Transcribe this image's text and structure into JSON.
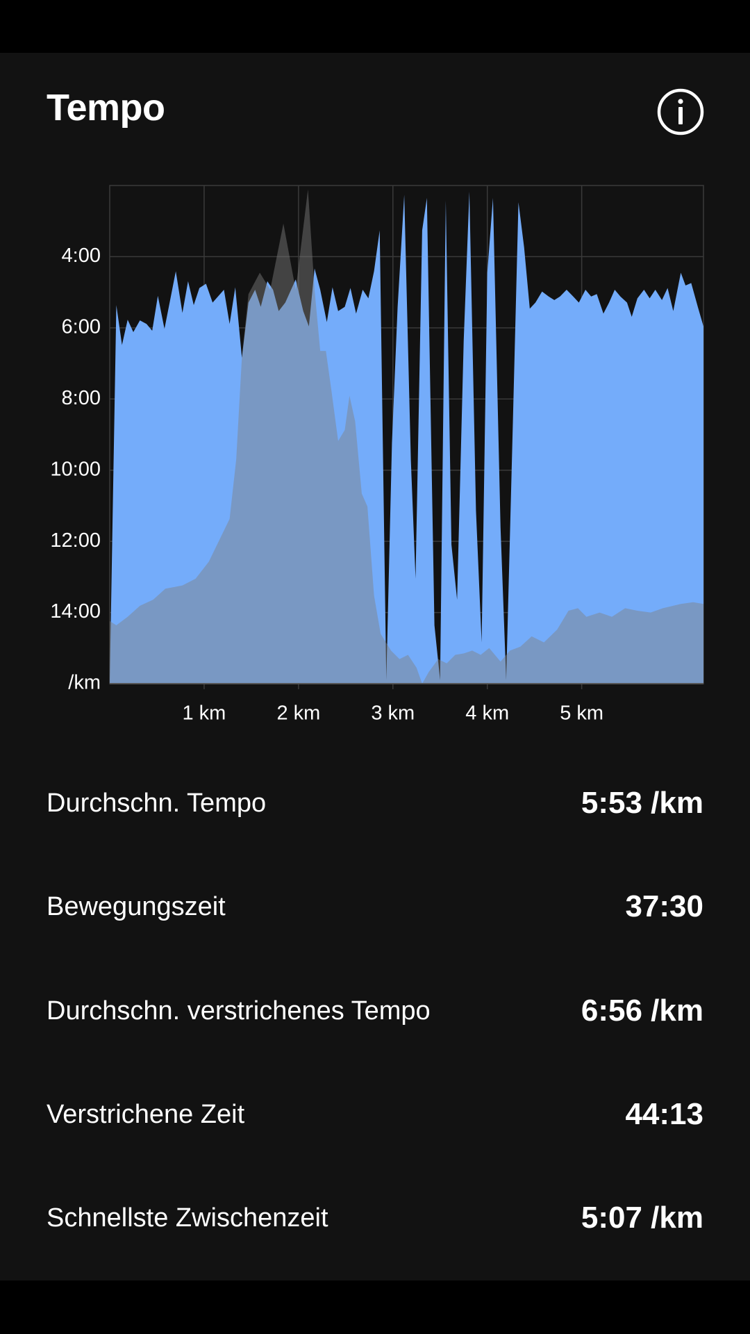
{
  "header": {
    "title": "Tempo"
  },
  "chart_data": {
    "type": "area",
    "ylim": [
      16,
      2
    ],
    "yticks": [
      {
        "value": 4,
        "label": "4:00"
      },
      {
        "value": 6,
        "label": "6:00"
      },
      {
        "value": 8,
        "label": "8:00"
      },
      {
        "value": 10,
        "label": "10:00"
      },
      {
        "value": 12,
        "label": "12:00"
      },
      {
        "value": 14,
        "label": "14:00"
      },
      {
        "value": 16,
        "label": "/km"
      }
    ],
    "xlim": [
      0,
      6.29
    ],
    "xticks": [
      {
        "value": 1,
        "label": "1 km"
      },
      {
        "value": 2,
        "label": "2 km"
      },
      {
        "value": 3,
        "label": "3 km"
      },
      {
        "value": 4,
        "label": "4 km"
      },
      {
        "value": 5,
        "label": "5 km"
      }
    ],
    "grid": true,
    "series": [
      {
        "color": "#74acfa",
        "opacity": 1,
        "x": [
          0,
          0.07,
          0.13,
          0.19,
          0.25,
          0.32,
          0.39,
          0.45,
          0.51,
          0.58,
          0.7,
          0.77,
          0.83,
          0.89,
          0.95,
          1.02,
          1.09,
          1.21,
          1.27,
          1.33,
          1.4,
          1.47,
          1.54,
          1.6,
          1.67,
          1.73,
          1.79,
          1.86,
          1.97,
          2.05,
          2.11,
          2.17,
          2.23,
          2.3,
          2.36,
          2.42,
          2.49,
          2.55,
          2.61,
          2.68,
          2.74,
          2.8,
          2.86,
          2.93,
          2.99,
          3.05,
          3.12,
          3.19,
          3.24,
          3.31,
          3.36,
          3.44,
          3.5,
          3.56,
          3.62,
          3.68,
          3.75,
          3.81,
          3.88,
          3.94,
          4.0,
          4.06,
          4.14,
          4.2,
          4.27,
          4.33,
          4.39,
          4.45,
          4.51,
          4.58,
          4.65,
          4.71,
          4.77,
          4.84,
          4.91,
          4.97,
          5.04,
          5.1,
          5.16,
          5.23,
          5.29,
          5.35,
          5.41,
          5.48,
          5.53,
          5.59,
          5.66,
          5.72,
          5.78,
          5.85,
          5.91,
          5.97,
          6.05,
          6.1,
          6.16,
          6.23,
          6.29
        ],
        "values": [
          16,
          5.36,
          6.48,
          5.77,
          6.12,
          5.79,
          5.89,
          6.08,
          5.1,
          6.03,
          4.41,
          5.58,
          4.69,
          5.36,
          4.88,
          4.76,
          5.29,
          4.93,
          5.89,
          4.86,
          6.84,
          5.29,
          4.93,
          5.41,
          4.69,
          4.93,
          5.53,
          5.29,
          4.64,
          5.53,
          5.96,
          4.33,
          4.93,
          5.84,
          4.86,
          5.53,
          5.41,
          4.88,
          5.6,
          4.93,
          5.17,
          4.41,
          3.26,
          15.9,
          9.23,
          5.41,
          2.26,
          9.71,
          13.05,
          3.26,
          2.35,
          14.36,
          15.9,
          2.42,
          12.09,
          13.64,
          6.36,
          2.17,
          11.14,
          14.84,
          4.45,
          2.35,
          11.61,
          15.9,
          8.75,
          2.47,
          3.74,
          5.46,
          5.29,
          4.98,
          5.12,
          5.22,
          5.12,
          4.93,
          5.12,
          5.29,
          4.93,
          5.12,
          5.05,
          5.6,
          5.29,
          4.93,
          5.12,
          5.29,
          5.69,
          5.17,
          4.93,
          5.17,
          4.93,
          5.22,
          4.88,
          5.53,
          4.45,
          4.81,
          4.74,
          5.41,
          5.96
        ]
      },
      {
        "color": "#808080",
        "opacity": 0.45,
        "x": [
          0,
          0.07,
          0.19,
          0.32,
          0.46,
          0.59,
          0.77,
          0.91,
          1.05,
          1.16,
          1.27,
          1.34,
          1.4,
          1.47,
          1.59,
          1.7,
          1.84,
          1.97,
          2.1,
          2.17,
          2.23,
          2.29,
          2.35,
          2.42,
          2.49,
          2.54,
          2.6,
          2.67,
          2.73,
          2.8,
          2.87,
          2.98,
          3.07,
          3.16,
          3.25,
          3.31,
          3.38,
          3.48,
          3.57,
          3.66,
          3.75,
          3.84,
          3.93,
          4.02,
          4.14,
          4.24,
          4.35,
          4.47,
          4.6,
          4.74,
          4.86,
          4.96,
          5.05,
          5.19,
          5.32,
          5.46,
          5.59,
          5.73,
          5.86,
          6.05,
          6.18,
          6.29
        ],
        "values": [
          14.24,
          14.36,
          14.12,
          13.81,
          13.64,
          13.33,
          13.24,
          13.05,
          12.57,
          11.97,
          11.37,
          9.7,
          6.84,
          5.05,
          4.45,
          4.93,
          3.07,
          4.93,
          2.11,
          4.93,
          6.65,
          6.65,
          7.79,
          9.18,
          8.87,
          7.91,
          8.63,
          10.66,
          11.02,
          13.52,
          14.6,
          15.07,
          15.31,
          15.19,
          15.55,
          16,
          15.67,
          15.31,
          15.43,
          15.19,
          15.15,
          15.07,
          15.19,
          15.0,
          15.38,
          15.07,
          14.96,
          14.67,
          14.84,
          14.48,
          13.95,
          13.88,
          14.12,
          14.0,
          14.12,
          13.88,
          13.95,
          14.0,
          13.88,
          13.76,
          13.71,
          13.76
        ]
      }
    ]
  },
  "stats": [
    {
      "label": "Durchschn. Tempo",
      "value": "5:53 /km"
    },
    {
      "label": "Bewegungszeit",
      "value": "37:30"
    },
    {
      "label": "Durchschn. verstrichenes Tempo",
      "value": "6:56 /km"
    },
    {
      "label": "Verstrichene Zeit",
      "value": "44:13"
    },
    {
      "label": "Schnellste Zwischenzeit",
      "value": "5:07 /km"
    }
  ]
}
